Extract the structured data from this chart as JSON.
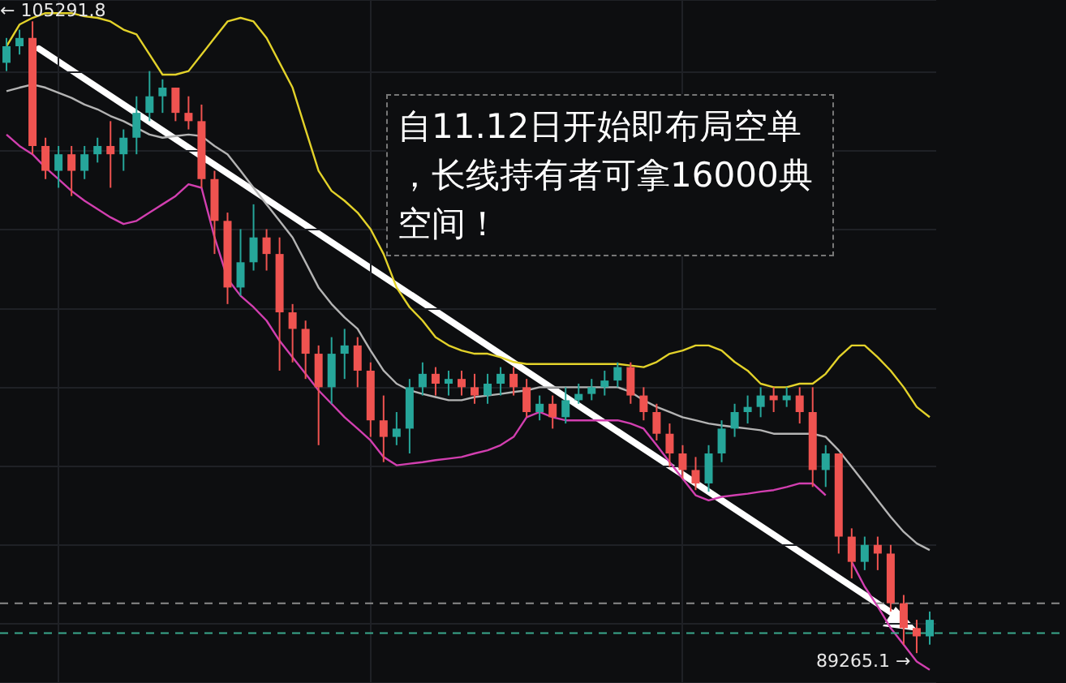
{
  "chart_data": {
    "type": "candlestick",
    "grid": true,
    "categories": [
      null,
      null,
      null,
      null,
      null,
      null,
      null,
      null,
      null,
      null,
      null,
      null,
      null,
      null,
      null,
      null,
      null,
      null,
      null,
      null,
      null,
      null,
      null,
      null,
      null,
      null,
      null,
      null,
      null,
      null,
      null,
      null,
      null,
      null,
      null,
      null,
      null,
      null,
      null,
      null,
      null,
      null,
      null,
      null,
      null,
      null,
      null,
      null,
      null,
      null,
      null,
      null,
      null,
      null,
      null,
      null,
      null,
      null,
      null,
      null,
      null,
      null,
      null,
      null,
      null,
      null,
      null,
      null,
      null,
      null,
      null,
      null
    ],
    "ohlc": [
      [
        104240,
        104870,
        104030,
        104660
      ],
      [
        104660,
        105080,
        104450,
        104870
      ],
      [
        104870,
        105291.8,
        101920,
        102130
      ],
      [
        102130,
        102340,
        101290,
        101500
      ],
      [
        101500,
        102130,
        101070,
        101920
      ],
      [
        101920,
        102130,
        100860,
        101500
      ],
      [
        101500,
        102130,
        101290,
        101920
      ],
      [
        101920,
        102340,
        101710,
        102130
      ],
      [
        102130,
        102760,
        101070,
        101920
      ],
      [
        101920,
        102550,
        101500,
        102340
      ],
      [
        102340,
        103390,
        101920,
        102970
      ],
      [
        102970,
        104030,
        102760,
        103390
      ],
      [
        103390,
        103820,
        102970,
        103610
      ],
      [
        103610,
        103610,
        102760,
        102970
      ],
      [
        102970,
        103390,
        102550,
        102760
      ],
      [
        102760,
        103180,
        101070,
        101290
      ],
      [
        101290,
        101500,
        99390,
        100230
      ],
      [
        100230,
        100440,
        98120,
        98540
      ],
      [
        98540,
        100020,
        98330,
        99180
      ],
      [
        99180,
        100650,
        98970,
        99810
      ],
      [
        99810,
        100020,
        98970,
        99390
      ],
      [
        99390,
        99810,
        96430,
        97910
      ],
      [
        97910,
        98120,
        96640,
        97490
      ],
      [
        97490,
        97700,
        96220,
        96860
      ],
      [
        96860,
        97070,
        94540,
        96010
      ],
      [
        96010,
        97280,
        95590,
        96860
      ],
      [
        96860,
        97490,
        96220,
        97070
      ],
      [
        97070,
        97280,
        96010,
        96430
      ],
      [
        96430,
        96640,
        94750,
        95170
      ],
      [
        95170,
        95800,
        94110,
        94750
      ],
      [
        94750,
        95380,
        94540,
        94960
      ],
      [
        94960,
        96220,
        94330,
        96010
      ],
      [
        96010,
        96640,
        95800,
        96350
      ],
      [
        96350,
        96520,
        95800,
        96100
      ],
      [
        96100,
        96430,
        95800,
        96220
      ],
      [
        96220,
        96430,
        95800,
        96010
      ],
      [
        96010,
        96350,
        95590,
        95800
      ],
      [
        95800,
        96350,
        95590,
        96100
      ],
      [
        96100,
        96520,
        95800,
        96350
      ],
      [
        96350,
        96520,
        95800,
        96010
      ],
      [
        96010,
        96220,
        95250,
        95380
      ],
      [
        95380,
        95800,
        95170,
        95590
      ],
      [
        95590,
        95800,
        94960,
        95250
      ],
      [
        95250,
        96010,
        95090,
        95680
      ],
      [
        95680,
        96100,
        95590,
        95840
      ],
      [
        95840,
        96220,
        95680,
        96010
      ],
      [
        96010,
        96430,
        95800,
        96180
      ],
      [
        96180,
        96640,
        96010,
        96520
      ],
      [
        96520,
        96640,
        95590,
        95800
      ],
      [
        95800,
        96010,
        95170,
        95380
      ],
      [
        95380,
        95590,
        94660,
        94830
      ],
      [
        94830,
        95090,
        93990,
        94330
      ],
      [
        94330,
        94540,
        93690,
        93910
      ],
      [
        93910,
        94240,
        93400,
        93570
      ],
      [
        93570,
        94540,
        93360,
        94330
      ],
      [
        94330,
        95170,
        94110,
        94960
      ],
      [
        94960,
        95590,
        94750,
        95380
      ],
      [
        95380,
        95800,
        95090,
        95510
      ],
      [
        95510,
        96010,
        95250,
        95800
      ],
      [
        95800,
        96010,
        95380,
        95680
      ],
      [
        95680,
        96010,
        95510,
        95800
      ],
      [
        95800,
        96010,
        95090,
        95380
      ],
      [
        95380,
        96010,
        93480,
        93910
      ],
      [
        93910,
        94540,
        93480,
        94330
      ],
      [
        94330,
        94330,
        91790,
        92220
      ],
      [
        92220,
        92430,
        91160,
        91580
      ],
      [
        91580,
        92220,
        91370,
        92010
      ],
      [
        92010,
        92220,
        91370,
        91790
      ],
      [
        91790,
        92010,
        90320,
        90530
      ],
      [
        90530,
        90740,
        89480,
        89900
      ],
      [
        89900,
        90110,
        89265.1,
        89690
      ],
      [
        89690,
        90320,
        89480,
        90110
      ]
    ],
    "colors": [
      "#26a69a",
      "#26a69a",
      "#ef5350",
      "#ef5350",
      "#26a69a",
      "#ef5350",
      "#26a69a",
      "#26a69a",
      "#ef5350",
      "#26a69a",
      "#26a69a",
      "#26a69a",
      "#26a69a",
      "#ef5350",
      "#ef5350",
      "#ef5350",
      "#ef5350",
      "#ef5350",
      "#26a69a",
      "#26a69a",
      "#ef5350",
      "#ef5350",
      "#ef5350",
      "#ef5350",
      "#ef5350",
      "#26a69a",
      "#26a69a",
      "#ef5350",
      "#ef5350",
      "#ef5350",
      "#26a69a",
      "#26a69a",
      "#26a69a",
      "#ef5350",
      "#26a69a",
      "#ef5350",
      "#ef5350",
      "#26a69a",
      "#26a69a",
      "#ef5350",
      "#ef5350",
      "#26a69a",
      "#ef5350",
      "#26a69a",
      "#26a69a",
      "#26a69a",
      "#26a69a",
      "#26a69a",
      "#ef5350",
      "#ef5350",
      "#ef5350",
      "#ef5350",
      "#ef5350",
      "#ef5350",
      "#26a69a",
      "#26a69a",
      "#26a69a",
      "#26a69a",
      "#26a69a",
      "#ef5350",
      "#26a69a",
      "#ef5350",
      "#ef5350",
      "#26a69a",
      "#ef5350",
      "#ef5350",
      "#26a69a",
      "#ef5350",
      "#ef5350",
      "#ef5350",
      "#ef5350",
      "#26a69a"
    ],
    "series": [
      {
        "type": "line",
        "color": "#e3d22a",
        "values": [
          104660,
          105210,
          105380,
          105500,
          105500,
          105500,
          105420,
          105380,
          105290,
          105080,
          104960,
          104450,
          103940,
          103940,
          104030,
          104450,
          104870,
          105290,
          105380,
          105290,
          104870,
          104240,
          103610,
          102550,
          101500,
          100990,
          100740,
          100440,
          100020,
          99390,
          98540,
          98040,
          97700,
          97280,
          97070,
          96940,
          96860,
          96860,
          96770,
          96650,
          96600,
          96600,
          96600,
          96600,
          96600,
          96600,
          96600,
          96600,
          96560,
          96520,
          96650,
          96860,
          96940,
          97070,
          97070,
          96940,
          96650,
          96430,
          96100,
          96010,
          96010,
          96100,
          96100,
          96350,
          96770,
          97070,
          97070,
          96770,
          96430,
          96010,
          95510,
          95250
        ]
      },
      {
        "type": "line",
        "color": "#b4b4b4",
        "values": [
          103520,
          103610,
          103690,
          103610,
          103480,
          103350,
          103180,
          103060,
          102890,
          102760,
          102590,
          102420,
          102340,
          102380,
          102420,
          102380,
          102130,
          101920,
          101500,
          101070,
          100650,
          100230,
          99810,
          99180,
          98540,
          98120,
          97780,
          97490,
          96940,
          96430,
          96100,
          95930,
          95840,
          95760,
          95680,
          95680,
          95760,
          95800,
          95840,
          95890,
          95930,
          96010,
          96010,
          96010,
          96010,
          96010,
          96010,
          96010,
          95890,
          95680,
          95510,
          95380,
          95250,
          95170,
          95090,
          95040,
          95000,
          94960,
          94920,
          94830,
          94830,
          94830,
          94830,
          94750,
          94410,
          93990,
          93570,
          93140,
          92720,
          92340,
          92050,
          91880
        ]
      },
      {
        "type": "line",
        "color": "#d23fb0",
        "values": [
          102420,
          102130,
          101920,
          101580,
          101290,
          100990,
          100740,
          100530,
          100320,
          100150,
          100230,
          100440,
          100650,
          100860,
          101160,
          101070,
          99810,
          98760,
          98330,
          98040,
          97700,
          97190,
          96770,
          96350,
          95930,
          95590,
          95250,
          94960,
          94660,
          94240,
          94030,
          94070,
          94110,
          94160,
          94200,
          94240,
          94330,
          94410,
          94540,
          94750,
          95250,
          95380,
          95250,
          95170,
          95170,
          95170,
          95170,
          95170,
          95090,
          94960,
          94540,
          94110,
          93690,
          93270,
          93140,
          93230,
          93270,
          93310,
          93360,
          93400,
          93480,
          93570,
          93570,
          93270,
          null,
          91580,
          90950,
          90450,
          89900,
          89480,
          89050,
          88840
        ]
      }
    ],
    "ref_lines": [
      {
        "axis": "y",
        "value": 90530,
        "color": "#8a8a8a",
        "line_style": "dashed"
      },
      {
        "axis": "y",
        "value": 89770,
        "color": "#3aa88c",
        "line_style": "dashed"
      }
    ],
    "annotations": [
      "自11.12日开始即布局空单，长线持有者可拿16000典空间！",
      "← 105291.8",
      "89265.1 →"
    ]
  }
}
